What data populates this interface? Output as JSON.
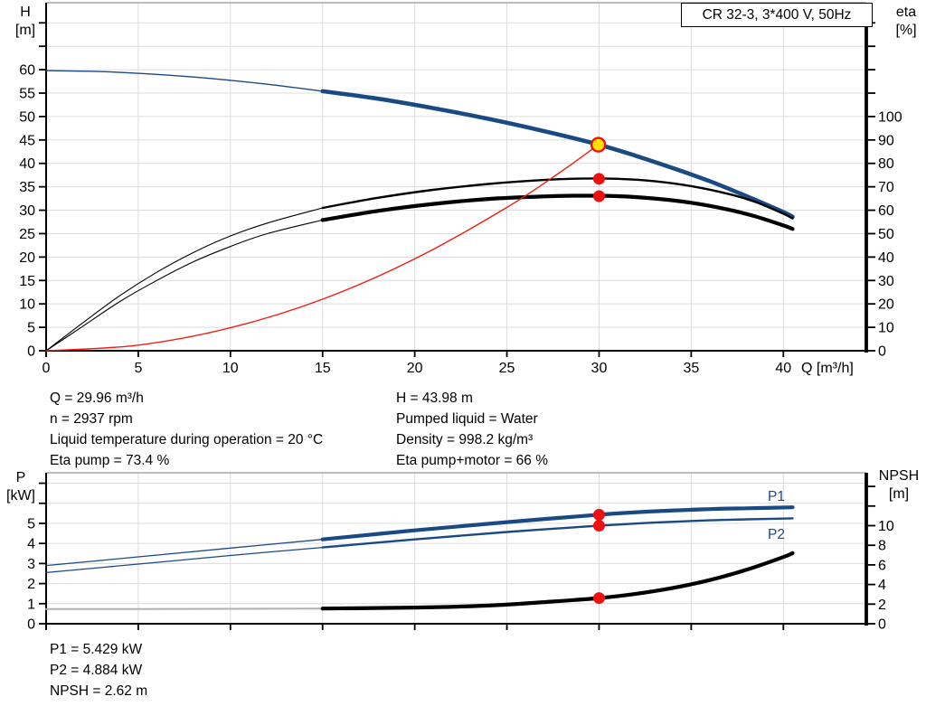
{
  "title_box": "CR 32-3, 3*400 V, 50Hz",
  "annotations": {
    "left_column": [
      "Q = 29.96 m³/h",
      "n = 2937 rpm",
      "Liquid temperature during operation = 20 °C",
      "Eta pump = 73.4 %"
    ],
    "right_column": [
      "H = 43.98 m",
      "Pumped liquid = Water",
      "Density = 998.2 kg/m³",
      "Eta pump+motor = 66 %"
    ],
    "bottom_block": [
      "P1 = 5.429 kW",
      "P2 = 4.884 kW",
      "NPSH = 2.62 m"
    ]
  },
  "colors": {
    "curve_blue": "#1A4A84",
    "curve_black": "#000000",
    "curve_red": "#F01E14",
    "curve_gray": "#B0B0B0",
    "duty_yellow": "#FFE000",
    "marker_red": "#EE1111",
    "grid": "#DCDCDC",
    "border_gray": "#A6A6A6",
    "axis": "#000000"
  },
  "chart_data": [
    {
      "type": "line",
      "title": "CR 32-3, 3*400 V, 50Hz",
      "x_axis": {
        "name": "Q",
        "unit": "[m³/h]",
        "label": "Q [m³/h]",
        "ticks": [
          0,
          5,
          10,
          15,
          20,
          25,
          30,
          35,
          40
        ],
        "range": [
          0,
          44.5
        ]
      },
      "y_left": {
        "name": "H",
        "unit": "[m]",
        "ticks": [
          0,
          5,
          10,
          15,
          20,
          25,
          30,
          35,
          40,
          45,
          50,
          55,
          60
        ],
        "unlabeled_ticks": [
          65,
          70
        ],
        "range": [
          0,
          74.3
        ]
      },
      "y_right": {
        "name": "eta",
        "unit": "[%]",
        "ticks": [
          0,
          10,
          20,
          30,
          40,
          50,
          60,
          70,
          80,
          90,
          100
        ],
        "unlabeled_ticks": [
          110,
          120,
          130,
          140
        ],
        "range": [
          0,
          148.6
        ]
      },
      "series": [
        {
          "name": "head-curve-thin",
          "axis": "left",
          "color": "blue",
          "width": 1.4,
          "points": [
            [
              0,
              59.8
            ],
            [
              3,
              59.6
            ],
            [
              6,
              59.0
            ],
            [
              9,
              58.1
            ],
            [
              12,
              56.9
            ],
            [
              15,
              55.4
            ]
          ]
        },
        {
          "name": "head-curve",
          "axis": "left",
          "color": "blue",
          "width": 4.6,
          "points": [
            [
              15,
              55.4
            ],
            [
              18,
              53.8
            ],
            [
              21,
              51.8
            ],
            [
              24,
              49.5
            ],
            [
              27,
              46.9
            ],
            [
              30,
              43.98
            ],
            [
              32,
              41.6
            ],
            [
              34,
              39.0
            ],
            [
              36,
              36.2
            ],
            [
              38,
              33.0
            ],
            [
              40,
              29.6
            ],
            [
              40.5,
              28.6
            ]
          ]
        },
        {
          "name": "eta-pump-curve-thin",
          "axis": "right",
          "color": "black",
          "width": 1.1,
          "points": [
            [
              0,
              0
            ],
            [
              2,
              12
            ],
            [
              4,
              23.5
            ],
            [
              6,
              33.5
            ],
            [
              8,
              42
            ],
            [
              10,
              49
            ],
            [
              12,
              54.5
            ],
            [
              15,
              61
            ]
          ]
        },
        {
          "name": "eta-pump-curve",
          "axis": "right",
          "color": "black",
          "width": 2.4,
          "points": [
            [
              15,
              61
            ],
            [
              18,
              65.3
            ],
            [
              21,
              68.7
            ],
            [
              24,
              71.2
            ],
            [
              27,
              72.9
            ],
            [
              29,
              73.5
            ],
            [
              31,
              73.4
            ],
            [
              33,
              72.4
            ],
            [
              35,
              70.3
            ],
            [
              37,
              67.0
            ],
            [
              38.5,
              63.5
            ],
            [
              40,
              58.5
            ],
            [
              40.5,
              56.5
            ]
          ]
        },
        {
          "name": "eta-pump-motor-curve-thin",
          "axis": "right",
          "color": "black",
          "width": 1.1,
          "points": [
            [
              0,
              0
            ],
            [
              2,
              10.5
            ],
            [
              4,
              21
            ],
            [
              6,
              30
            ],
            [
              8,
              38
            ],
            [
              10,
              44.5
            ],
            [
              12,
              50
            ],
            [
              15,
              55.8
            ]
          ]
        },
        {
          "name": "eta-pump-motor-curve",
          "axis": "right",
          "color": "black",
          "width": 4.2,
          "points": [
            [
              15,
              55.8
            ],
            [
              18,
              59.7
            ],
            [
              21,
              62.7
            ],
            [
              24,
              64.8
            ],
            [
              27,
              65.9
            ],
            [
              29,
              66.2
            ],
            [
              31,
              66.0
            ],
            [
              33,
              65.0
            ],
            [
              35,
              63.2
            ],
            [
              37,
              60.3
            ],
            [
              38.5,
              57.3
            ],
            [
              40,
              53.5
            ],
            [
              40.5,
              52.0
            ]
          ]
        },
        {
          "name": "system-curve",
          "axis": "left",
          "color": "red",
          "width": 1.4,
          "points": [
            [
              0,
              0
            ],
            [
              5,
              1.2
            ],
            [
              10,
              4.9
            ],
            [
              15,
              11.0
            ],
            [
              20,
              19.6
            ],
            [
              25,
              30.6
            ],
            [
              28,
              38.4
            ],
            [
              29.96,
              43.98
            ]
          ]
        }
      ],
      "markers": [
        {
          "name": "duty-point",
          "axis": "left",
          "x": 29.96,
          "y": 43.98,
          "type": "yellow"
        },
        {
          "name": "eta-pump-point",
          "axis": "right",
          "x": 30,
          "y": 73.4,
          "type": "red"
        },
        {
          "name": "eta-pump-motor-point",
          "axis": "right",
          "x": 30,
          "y": 66,
          "type": "red"
        }
      ]
    },
    {
      "type": "line",
      "x_axis": {
        "name": "Q",
        "unit": "[m³/h]",
        "label": "",
        "ticks": [
          0,
          5,
          10,
          15,
          20,
          25,
          30,
          35,
          40
        ],
        "range": [
          0,
          44.5
        ]
      },
      "y_left": {
        "name": "P",
        "unit": "[kW]",
        "ticks": [
          0,
          1,
          2,
          3,
          4,
          5
        ],
        "unlabeled_ticks": [
          6,
          7
        ],
        "range": [
          0,
          7.52
        ]
      },
      "y_right": {
        "name": "NPSH",
        "unit": "[m]",
        "ticks": [
          0,
          2,
          4,
          6,
          8,
          10
        ],
        "unlabeled_ticks": [
          12,
          14
        ],
        "range": [
          0,
          15.39
        ]
      },
      "curve_labels": {
        "p1": "P1",
        "p2": "P2"
      },
      "series": [
        {
          "name": "p1-curve-thin",
          "axis": "left",
          "color": "blue",
          "width": 1.3,
          "points": [
            [
              0,
              2.9
            ],
            [
              5,
              3.33
            ],
            [
              10,
              3.77
            ],
            [
              15,
              4.2
            ]
          ]
        },
        {
          "name": "p1-curve",
          "axis": "left",
          "color": "blue",
          "width": 4.2,
          "points": [
            [
              15,
              4.2
            ],
            [
              20,
              4.65
            ],
            [
              25,
              5.06
            ],
            [
              30,
              5.429
            ],
            [
              33,
              5.6
            ],
            [
              36,
              5.71
            ],
            [
              38,
              5.75
            ],
            [
              40.5,
              5.8
            ]
          ]
        },
        {
          "name": "p2-curve-thin",
          "axis": "left",
          "color": "blue",
          "width": 1.3,
          "points": [
            [
              0,
              2.55
            ],
            [
              5,
              2.97
            ],
            [
              10,
              3.4
            ],
            [
              15,
              3.8
            ]
          ]
        },
        {
          "name": "p2-curve",
          "axis": "left",
          "color": "blue",
          "width": 2.4,
          "points": [
            [
              15,
              3.8
            ],
            [
              20,
              4.2
            ],
            [
              25,
              4.57
            ],
            [
              30,
              4.884
            ],
            [
              33,
              5.04
            ],
            [
              36,
              5.15
            ],
            [
              38,
              5.2
            ],
            [
              40.5,
              5.25
            ]
          ]
        },
        {
          "name": "npsh-curve-thin",
          "axis": "right",
          "color": "gray",
          "width": 2,
          "points": [
            [
              0,
              1.5
            ],
            [
              5,
              1.5
            ],
            [
              10,
              1.52
            ],
            [
              15,
              1.55
            ]
          ]
        },
        {
          "name": "npsh-curve",
          "axis": "right",
          "color": "black",
          "width": 4.2,
          "points": [
            [
              15,
              1.55
            ],
            [
              20,
              1.65
            ],
            [
              24,
              1.85
            ],
            [
              27,
              2.2
            ],
            [
              30,
              2.62
            ],
            [
              32,
              3.05
            ],
            [
              34,
              3.65
            ],
            [
              36,
              4.45
            ],
            [
              38,
              5.5
            ],
            [
              40,
              6.8
            ],
            [
              40.5,
              7.2
            ]
          ]
        }
      ],
      "markers": [
        {
          "name": "p1-point",
          "axis": "left",
          "x": 30,
          "y": 5.429,
          "type": "red"
        },
        {
          "name": "p2-point",
          "axis": "left",
          "x": 30,
          "y": 4.884,
          "type": "red"
        },
        {
          "name": "npsh-point",
          "axis": "right",
          "x": 30,
          "y": 2.62,
          "type": "red"
        }
      ]
    }
  ]
}
